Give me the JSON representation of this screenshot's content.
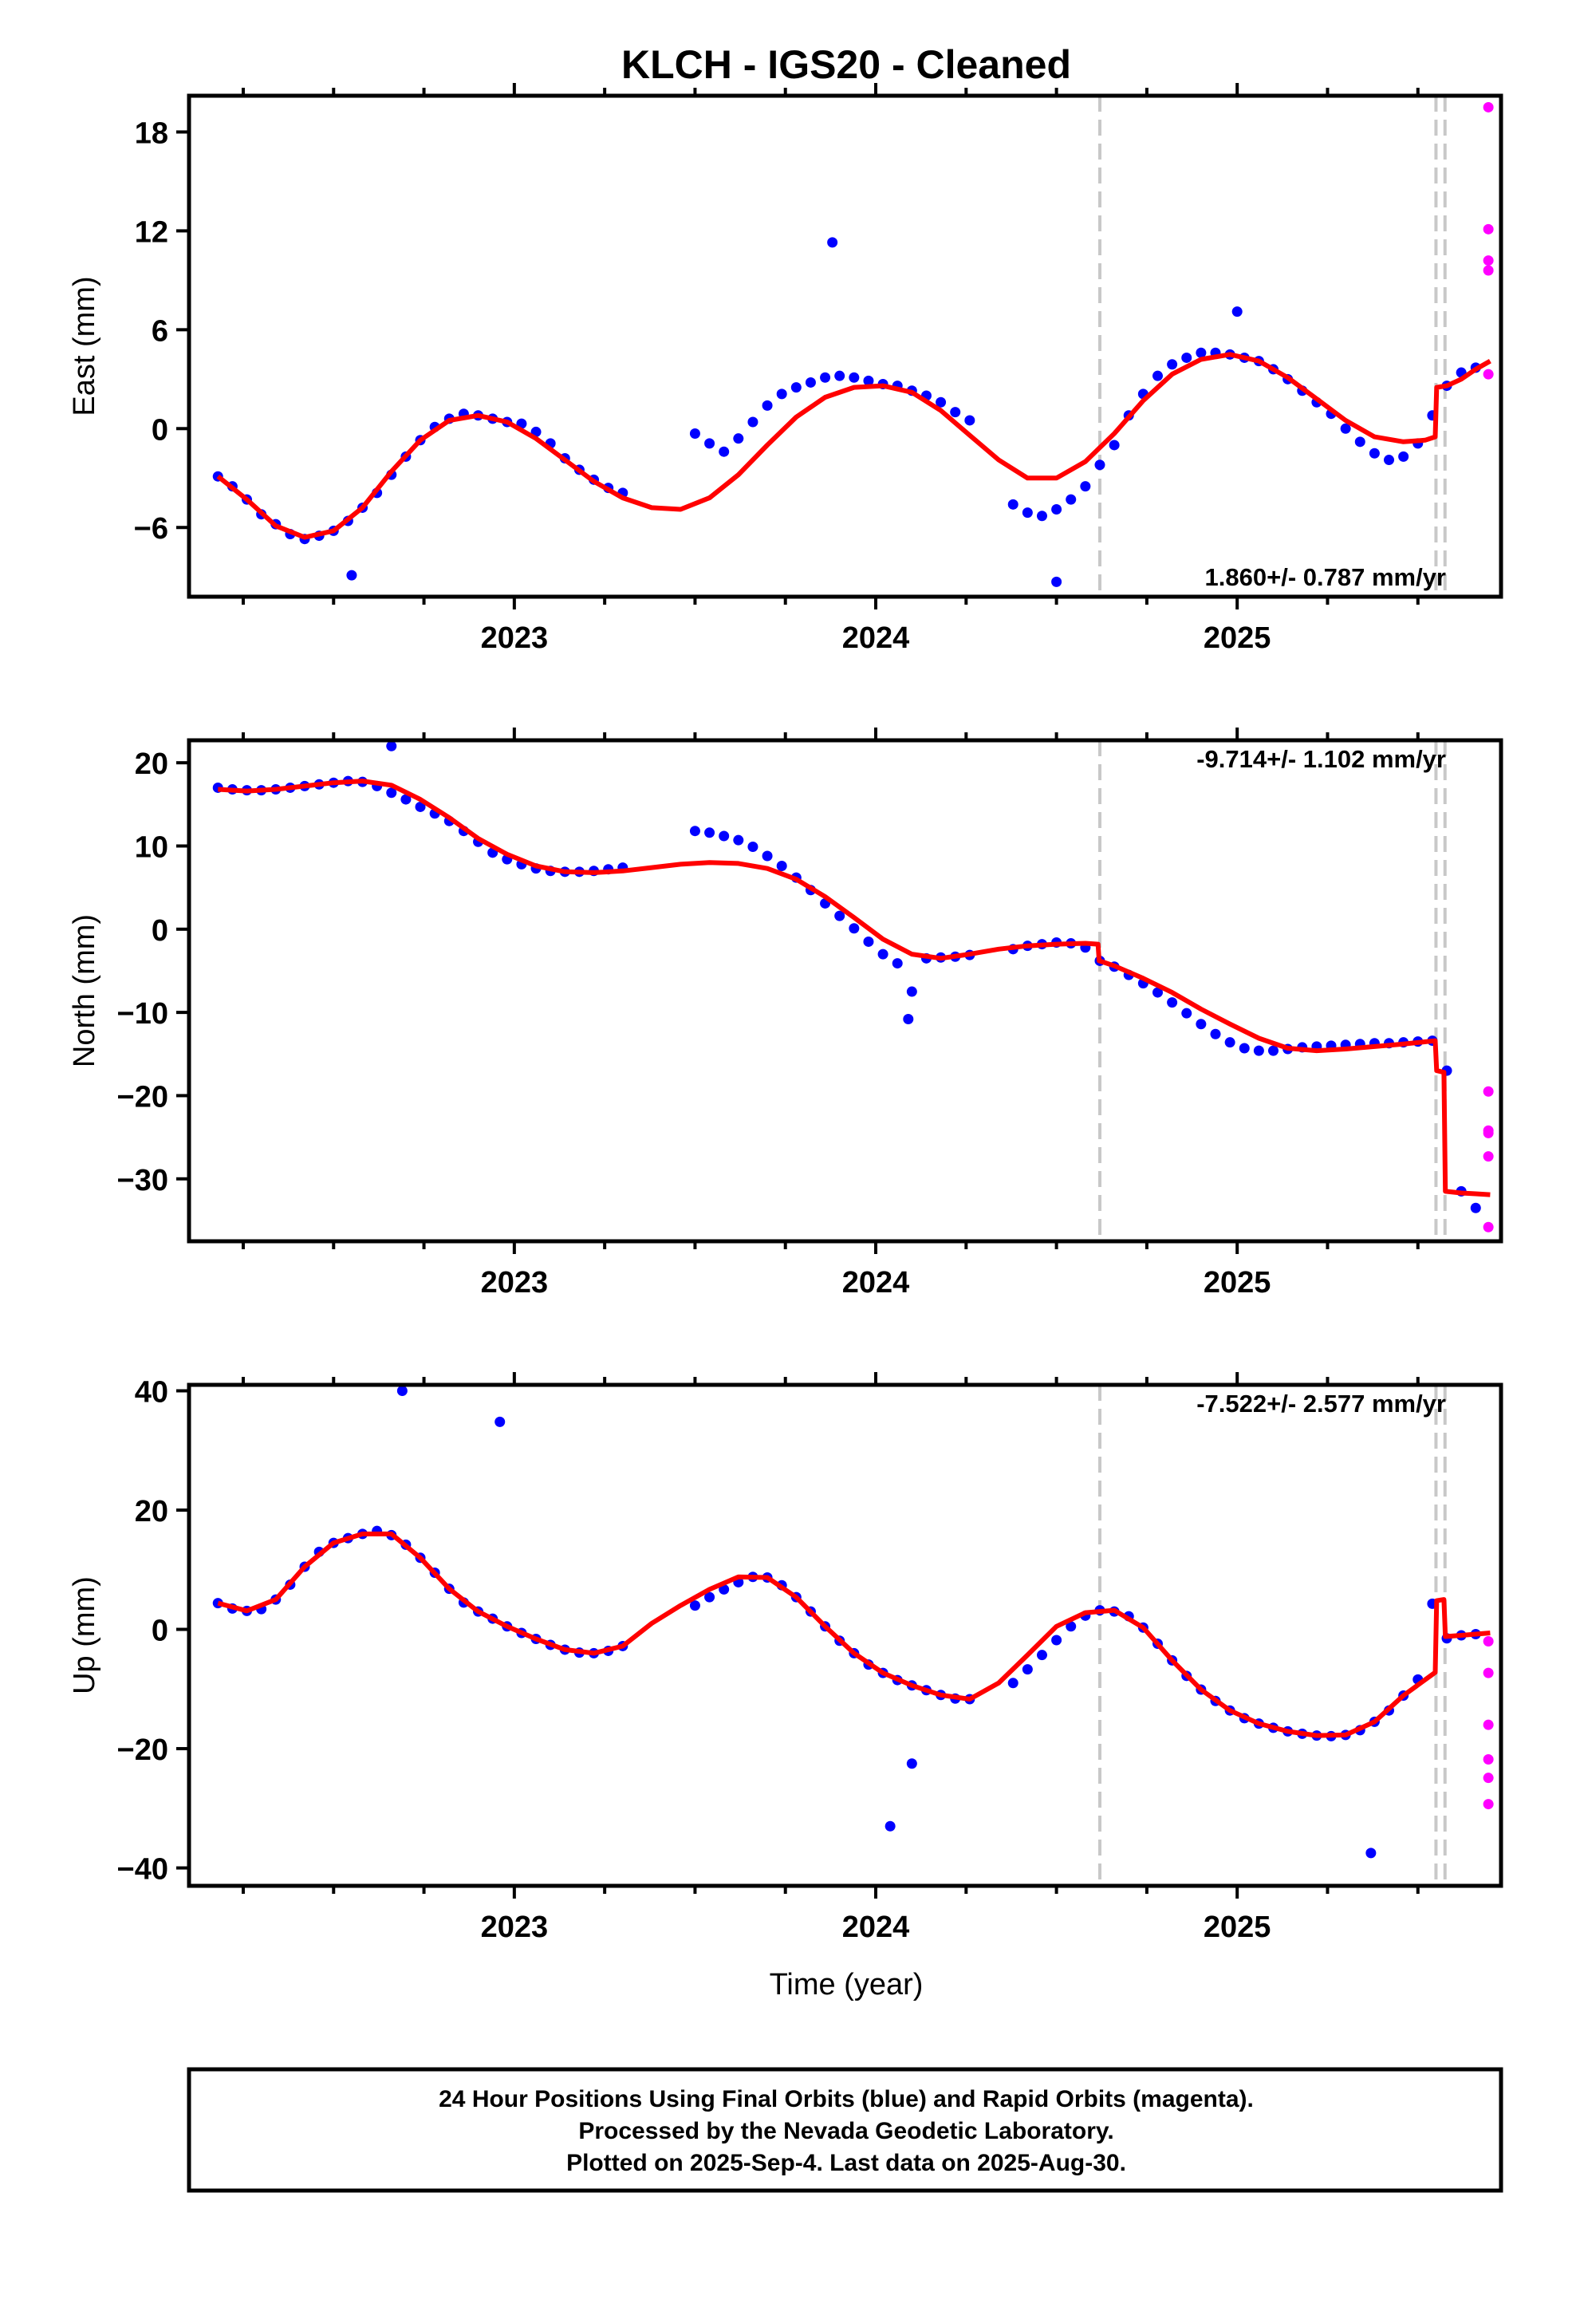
{
  "title": "KLCH  - IGS20 - Cleaned",
  "xlabel": "Time (year)",
  "footer": [
    "24 Hour Positions Using Final Orbits (blue) and Rapid Orbits (magenta).",
    "Processed by the Nevada Geodetic Laboratory.",
    "Plotted on 2025-Sep-4. Last data on 2025-Aug-30."
  ],
  "colors": {
    "final": "#0000ff",
    "rapid": "#ff00ff",
    "model": "#ff0000",
    "breaks": "#c8c8c8"
  },
  "chart_data": [
    {
      "type": "scatter",
      "panel": "east",
      "ylabel": "East (mm)",
      "rate": "1.860+/- 0.787 mm/yr",
      "xlim": [
        2022.1,
        2025.73
      ],
      "ylim": [
        -10.2,
        20.2
      ],
      "yticks": [
        -6,
        0,
        6,
        12,
        18
      ],
      "xticks": [
        2023,
        2024,
        2025
      ],
      "breaks": [
        2024.62,
        2025.55,
        2025.575
      ],
      "series": [
        {
          "name": "Final Orbits",
          "x": [
            2022.18,
            2022.22,
            2022.26,
            2022.3,
            2022.34,
            2022.38,
            2022.42,
            2022.46,
            2022.5,
            2022.54,
            2022.58,
            2022.62,
            2022.66,
            2022.7,
            2022.74,
            2022.78,
            2022.82,
            2022.86,
            2022.9,
            2022.94,
            2022.98,
            2023.02,
            2023.06,
            2023.1,
            2023.14,
            2023.18,
            2023.22,
            2023.26,
            2023.3,
            2023.5,
            2023.54,
            2023.58,
            2023.62,
            2023.66,
            2023.7,
            2023.74,
            2023.78,
            2023.82,
            2023.86,
            2023.9,
            2023.94,
            2023.98,
            2024.02,
            2024.06,
            2024.1,
            2024.14,
            2024.18,
            2024.22,
            2024.26,
            2024.38,
            2024.42,
            2024.46,
            2024.5,
            2024.54,
            2024.58,
            2024.62,
            2024.66,
            2024.7,
            2024.74,
            2024.78,
            2024.82,
            2024.86,
            2024.9,
            2024.94,
            2024.98,
            2025.02,
            2025.06,
            2025.1,
            2025.14,
            2025.18,
            2025.22,
            2025.26,
            2025.3,
            2025.34,
            2025.38,
            2025.42,
            2025.46,
            2025.5,
            2025.54,
            2025.58,
            2025.62,
            2025.66,
            2023.88,
            2022.55,
            2024.5,
            2025.0
          ],
          "y": [
            -2.9,
            -3.5,
            -4.3,
            -5.2,
            -5.8,
            -6.4,
            -6.7,
            -6.5,
            -6.2,
            -5.6,
            -4.8,
            -3.9,
            -2.8,
            -1.7,
            -0.7,
            0.1,
            0.6,
            0.9,
            0.8,
            0.6,
            0.4,
            0.3,
            -0.2,
            -0.9,
            -1.8,
            -2.5,
            -3.1,
            -3.6,
            -3.9,
            -0.3,
            -0.9,
            -1.4,
            -0.6,
            0.4,
            1.4,
            2.1,
            2.5,
            2.8,
            3.1,
            3.2,
            3.1,
            2.9,
            2.7,
            2.6,
            2.3,
            2.0,
            1.6,
            1.0,
            0.5,
            -4.6,
            -5.1,
            -5.3,
            -4.9,
            -4.3,
            -3.5,
            -2.2,
            -1.0,
            0.8,
            2.1,
            3.2,
            3.9,
            4.3,
            4.6,
            4.6,
            4.5,
            4.3,
            4.1,
            3.6,
            3.0,
            2.3,
            1.6,
            0.9,
            0.0,
            -0.8,
            -1.5,
            -1.9,
            -1.7,
            -0.9,
            0.8,
            2.6,
            3.4,
            3.7,
            11.3,
            -8.9,
            -9.3,
            7.1
          ]
        },
        {
          "name": "Rapid Orbits",
          "x": [
            2025.695,
            2025.695,
            2025.695,
            2025.695,
            2025.695
          ],
          "y": [
            19.5,
            12.1,
            10.2,
            9.6,
            3.3
          ]
        },
        {
          "name": "Model",
          "x": [
            2022.18,
            2022.26,
            2022.34,
            2022.42,
            2022.5,
            2022.58,
            2022.66,
            2022.74,
            2022.82,
            2022.9,
            2022.98,
            2023.06,
            2023.14,
            2023.22,
            2023.3,
            2023.38,
            2023.46,
            2023.54,
            2023.62,
            2023.7,
            2023.78,
            2023.86,
            2023.94,
            2024.02,
            2024.1,
            2024.18,
            2024.26,
            2024.34,
            2024.42,
            2024.5,
            2024.58,
            2024.66,
            2024.74,
            2024.82,
            2024.9,
            2024.98,
            2025.06,
            2025.14,
            2025.22,
            2025.3,
            2025.38,
            2025.46,
            2025.52,
            2025.548,
            2025.552,
            2025.58,
            2025.62,
            2025.66,
            2025.7
          ],
          "y": [
            -2.9,
            -4.3,
            -5.9,
            -6.6,
            -6.2,
            -4.8,
            -2.6,
            -0.7,
            0.5,
            0.8,
            0.4,
            -0.6,
            -1.9,
            -3.2,
            -4.2,
            -4.8,
            -4.9,
            -4.2,
            -2.8,
            -1.0,
            0.7,
            1.9,
            2.5,
            2.6,
            2.2,
            1.1,
            -0.4,
            -1.9,
            -3.0,
            -3.0,
            -2.0,
            -0.3,
            1.7,
            3.3,
            4.2,
            4.5,
            4.1,
            3.1,
            1.8,
            0.5,
            -0.5,
            -0.8,
            -0.7,
            -0.5,
            2.5,
            2.6,
            3.0,
            3.6,
            4.1
          ]
        }
      ]
    },
    {
      "type": "scatter",
      "panel": "north",
      "ylabel": "North (mm)",
      "rate": "-9.714+/- 1.102 mm/yr",
      "xlim": [
        2022.1,
        2025.73
      ],
      "ylim": [
        -37.5,
        22.7
      ],
      "yticks": [
        -30,
        -20,
        -10,
        0,
        10,
        20
      ],
      "xticks": [
        2023,
        2024,
        2025
      ],
      "breaks": [
        2024.62,
        2025.55,
        2025.575
      ],
      "series": [
        {
          "name": "Final Orbits",
          "x": [
            2022.18,
            2022.22,
            2022.26,
            2022.3,
            2022.34,
            2022.38,
            2022.42,
            2022.46,
            2022.5,
            2022.54,
            2022.58,
            2022.62,
            2022.66,
            2022.7,
            2022.74,
            2022.78,
            2022.82,
            2022.86,
            2022.9,
            2022.94,
            2022.98,
            2023.02,
            2023.06,
            2023.1,
            2023.14,
            2023.18,
            2023.22,
            2023.26,
            2023.3,
            2023.5,
            2023.54,
            2023.58,
            2023.62,
            2023.66,
            2023.7,
            2023.74,
            2023.78,
            2023.82,
            2023.86,
            2023.9,
            2023.94,
            2023.98,
            2024.02,
            2024.06,
            2024.1,
            2024.14,
            2024.18,
            2024.22,
            2024.26,
            2024.38,
            2024.42,
            2024.46,
            2024.5,
            2024.54,
            2024.58,
            2024.62,
            2024.66,
            2024.7,
            2024.74,
            2024.78,
            2024.82,
            2024.86,
            2024.9,
            2024.94,
            2024.98,
            2025.02,
            2025.06,
            2025.1,
            2025.14,
            2025.18,
            2025.22,
            2025.26,
            2025.3,
            2025.34,
            2025.38,
            2025.42,
            2025.46,
            2025.5,
            2025.54,
            2025.58,
            2025.62,
            2025.66,
            2022.66,
            2024.09
          ],
          "y": [
            17.0,
            16.8,
            16.7,
            16.7,
            16.8,
            17.0,
            17.2,
            17.4,
            17.6,
            17.8,
            17.7,
            17.2,
            16.4,
            15.6,
            14.7,
            13.9,
            13.0,
            11.8,
            10.5,
            9.2,
            8.4,
            7.8,
            7.3,
            7.0,
            6.9,
            6.9,
            7.0,
            7.2,
            7.4,
            11.8,
            11.6,
            11.2,
            10.7,
            9.9,
            8.8,
            7.6,
            6.2,
            4.7,
            3.1,
            1.6,
            0.1,
            -1.5,
            -3.0,
            -4.1,
            -7.5,
            -3.5,
            -3.4,
            -3.3,
            -3.1,
            -2.4,
            -2.0,
            -1.8,
            -1.6,
            -1.7,
            -2.2,
            -3.8,
            -4.5,
            -5.5,
            -6.5,
            -7.6,
            -8.8,
            -10.1,
            -11.4,
            -12.6,
            -13.6,
            -14.3,
            -14.6,
            -14.6,
            -14.4,
            -14.2,
            -14.1,
            -14.0,
            -13.9,
            -13.8,
            -13.7,
            -13.7,
            -13.6,
            -13.5,
            -13.4,
            -17.0,
            -31.5,
            -33.5,
            22.0,
            -10.8
          ]
        },
        {
          "name": "Rapid Orbits",
          "x": [
            2025.695,
            2025.695,
            2025.695,
            2025.695,
            2025.695
          ],
          "y": [
            -19.5,
            -24.2,
            -24.5,
            -27.3,
            -35.8
          ]
        },
        {
          "name": "Model",
          "x": [
            2022.18,
            2022.26,
            2022.34,
            2022.42,
            2022.5,
            2022.58,
            2022.66,
            2022.74,
            2022.82,
            2022.9,
            2022.98,
            2023.06,
            2023.14,
            2023.22,
            2023.3,
            2023.38,
            2023.46,
            2023.54,
            2023.62,
            2023.7,
            2023.78,
            2023.86,
            2023.94,
            2024.02,
            2024.1,
            2024.18,
            2024.26,
            2024.34,
            2024.42,
            2024.5,
            2024.58,
            2024.615,
            2024.618,
            2024.66,
            2024.74,
            2024.82,
            2024.9,
            2024.98,
            2025.06,
            2025.14,
            2025.22,
            2025.3,
            2025.38,
            2025.46,
            2025.548,
            2025.552,
            2025.572,
            2025.576,
            2025.62,
            2025.66,
            2025.7
          ],
          "y": [
            16.8,
            16.6,
            16.8,
            17.2,
            17.6,
            17.8,
            17.3,
            15.6,
            13.4,
            10.9,
            9.0,
            7.6,
            6.9,
            6.8,
            7.0,
            7.4,
            7.8,
            8.0,
            7.9,
            7.3,
            6.0,
            3.9,
            1.4,
            -1.2,
            -3.0,
            -3.5,
            -3.0,
            -2.4,
            -2.0,
            -1.8,
            -1.7,
            -1.8,
            -3.8,
            -4.4,
            -5.9,
            -7.6,
            -9.6,
            -11.4,
            -13.1,
            -14.3,
            -14.6,
            -14.4,
            -14.1,
            -13.8,
            -13.4,
            -17.0,
            -17.2,
            -31.5,
            -31.7,
            -31.8,
            -31.9
          ]
        }
      ]
    },
    {
      "type": "scatter",
      "panel": "up",
      "ylabel": "Up (mm)",
      "rate": "-7.522+/- 2.577 mm/yr",
      "xlim": [
        2022.1,
        2025.73
      ],
      "ylim": [
        -43.0,
        41.0
      ],
      "yticks": [
        -40,
        -20,
        0,
        20,
        40
      ],
      "xticks": [
        2023,
        2024,
        2025
      ],
      "breaks": [
        2024.62,
        2025.55,
        2025.575
      ],
      "series": [
        {
          "name": "Final Orbits",
          "x": [
            2022.18,
            2022.22,
            2022.26,
            2022.3,
            2022.34,
            2022.38,
            2022.42,
            2022.46,
            2022.5,
            2022.54,
            2022.58,
            2022.62,
            2022.66,
            2022.7,
            2022.74,
            2022.78,
            2022.82,
            2022.86,
            2022.9,
            2022.94,
            2022.98,
            2023.02,
            2023.06,
            2023.1,
            2023.14,
            2023.18,
            2023.22,
            2023.26,
            2023.3,
            2023.5,
            2023.54,
            2023.58,
            2023.62,
            2023.66,
            2023.7,
            2023.74,
            2023.78,
            2023.82,
            2023.86,
            2023.9,
            2023.94,
            2023.98,
            2024.02,
            2024.06,
            2024.1,
            2024.14,
            2024.18,
            2024.22,
            2024.26,
            2024.38,
            2024.42,
            2024.46,
            2024.5,
            2024.54,
            2024.58,
            2024.62,
            2024.66,
            2024.7,
            2024.74,
            2024.78,
            2024.82,
            2024.86,
            2024.9,
            2024.94,
            2024.98,
            2025.02,
            2025.06,
            2025.1,
            2025.14,
            2025.18,
            2025.22,
            2025.26,
            2025.3,
            2025.34,
            2025.38,
            2025.42,
            2025.46,
            2025.5,
            2025.54,
            2025.58,
            2025.62,
            2025.66,
            2022.69,
            2022.96,
            2024.04,
            2024.1,
            2025.37
          ],
          "y": [
            4.4,
            3.5,
            3.1,
            3.4,
            5.0,
            7.5,
            10.5,
            13.0,
            14.5,
            15.3,
            16.0,
            16.5,
            15.8,
            14.2,
            12.0,
            9.5,
            6.8,
            4.5,
            3.0,
            1.8,
            0.5,
            -0.6,
            -1.6,
            -2.6,
            -3.4,
            -3.9,
            -4.0,
            -3.6,
            -2.8,
            4.0,
            5.4,
            6.7,
            7.9,
            8.8,
            8.7,
            7.4,
            5.4,
            3.0,
            0.5,
            -1.9,
            -4.0,
            -5.9,
            -7.3,
            -8.5,
            -9.4,
            -10.2,
            -11.0,
            -11.6,
            -11.7,
            -9.0,
            -6.7,
            -4.3,
            -1.8,
            0.5,
            2.3,
            3.2,
            3.0,
            2.2,
            0.3,
            -2.4,
            -5.2,
            -7.8,
            -10.1,
            -12.0,
            -13.6,
            -14.9,
            -15.8,
            -16.5,
            -17.1,
            -17.5,
            -17.8,
            -17.9,
            -17.7,
            -16.9,
            -15.5,
            -13.6,
            -11.1,
            -8.4,
            4.3,
            -1.5,
            -1.0,
            -0.8,
            40.0,
            34.8,
            -33.0,
            -22.5,
            -37.5
          ]
        },
        {
          "name": "Rapid Orbits",
          "x": [
            2025.695,
            2025.695,
            2025.695,
            2025.695,
            2025.695,
            2025.695
          ],
          "y": [
            -2.0,
            -7.3,
            -16.0,
            -21.8,
            -24.9,
            -29.3
          ]
        },
        {
          "name": "Model",
          "x": [
            2022.18,
            2022.26,
            2022.34,
            2022.42,
            2022.5,
            2022.58,
            2022.66,
            2022.74,
            2022.82,
            2022.9,
            2022.98,
            2023.06,
            2023.14,
            2023.22,
            2023.3,
            2023.38,
            2023.46,
            2023.54,
            2023.62,
            2023.7,
            2023.78,
            2023.86,
            2023.94,
            2024.02,
            2024.1,
            2024.18,
            2024.26,
            2024.34,
            2024.42,
            2024.5,
            2024.58,
            2024.66,
            2024.74,
            2024.82,
            2024.9,
            2024.98,
            2025.06,
            2025.14,
            2025.22,
            2025.3,
            2025.38,
            2025.46,
            2025.548,
            2025.552,
            2025.572,
            2025.576,
            2025.62,
            2025.66,
            2025.7
          ],
          "y": [
            4.4,
            3.1,
            5.0,
            10.5,
            14.5,
            16.0,
            16.0,
            12.0,
            6.8,
            3.0,
            0.5,
            -1.6,
            -3.4,
            -4.0,
            -2.8,
            1.0,
            4.0,
            6.7,
            8.8,
            8.7,
            5.4,
            0.5,
            -4.0,
            -7.3,
            -9.4,
            -11.0,
            -11.7,
            -9.0,
            -4.3,
            0.5,
            2.8,
            3.2,
            0.3,
            -5.2,
            -10.1,
            -13.6,
            -15.8,
            -17.1,
            -17.8,
            -17.7,
            -15.5,
            -11.1,
            -7.2,
            4.8,
            5.0,
            -1.2,
            -1.0,
            -0.8,
            -0.6
          ]
        }
      ]
    }
  ]
}
